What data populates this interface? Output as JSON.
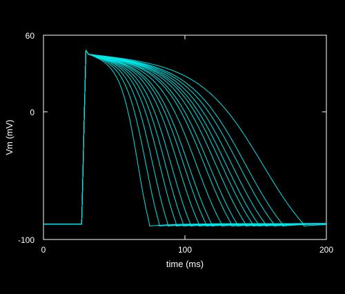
{
  "chart_data": {
    "type": "line",
    "title": "",
    "xlabel": "time (ms)",
    "ylabel": "Vm (mV)",
    "xlim": [
      0,
      200
    ],
    "ylim": [
      -100,
      60
    ],
    "x_ticks": [
      0,
      100,
      200
    ],
    "y_ticks": [
      -100,
      0,
      60
    ],
    "x_tick_labels": [
      "0",
      "100",
      "200"
    ],
    "y_tick_labels": [
      "-100",
      "0",
      "60"
    ],
    "grid": false,
    "legend": "none",
    "line_color": "#00e5e5",
    "axis_color": "#ffffff",
    "background": "#000000",
    "resting_potential": -88,
    "stimulus_time": 27,
    "upstroke_end_time": 30,
    "series": [
      {
        "apd90": 75,
        "peak": 48
      },
      {
        "apd90": 82,
        "peak": 48
      },
      {
        "apd90": 88,
        "peak": 48
      },
      {
        "apd90": 94,
        "peak": 48
      },
      {
        "apd90": 99,
        "peak": 48
      },
      {
        "apd90": 104,
        "peak": 48
      },
      {
        "apd90": 110,
        "peak": 48
      },
      {
        "apd90": 115,
        "peak": 48
      },
      {
        "apd90": 119,
        "peak": 48
      },
      {
        "apd90": 126,
        "peak": 48
      },
      {
        "apd90": 133,
        "peak": 48
      },
      {
        "apd90": 137,
        "peak": 48
      },
      {
        "apd90": 143,
        "peak": 48
      },
      {
        "apd90": 148,
        "peak": 48
      },
      {
        "apd90": 152,
        "peak": 48
      },
      {
        "apd90": 157,
        "peak": 48
      },
      {
        "apd90": 163,
        "peak": 48
      },
      {
        "apd90": 169,
        "peak": 48
      },
      {
        "apd90": 184,
        "peak": 48
      }
    ]
  }
}
